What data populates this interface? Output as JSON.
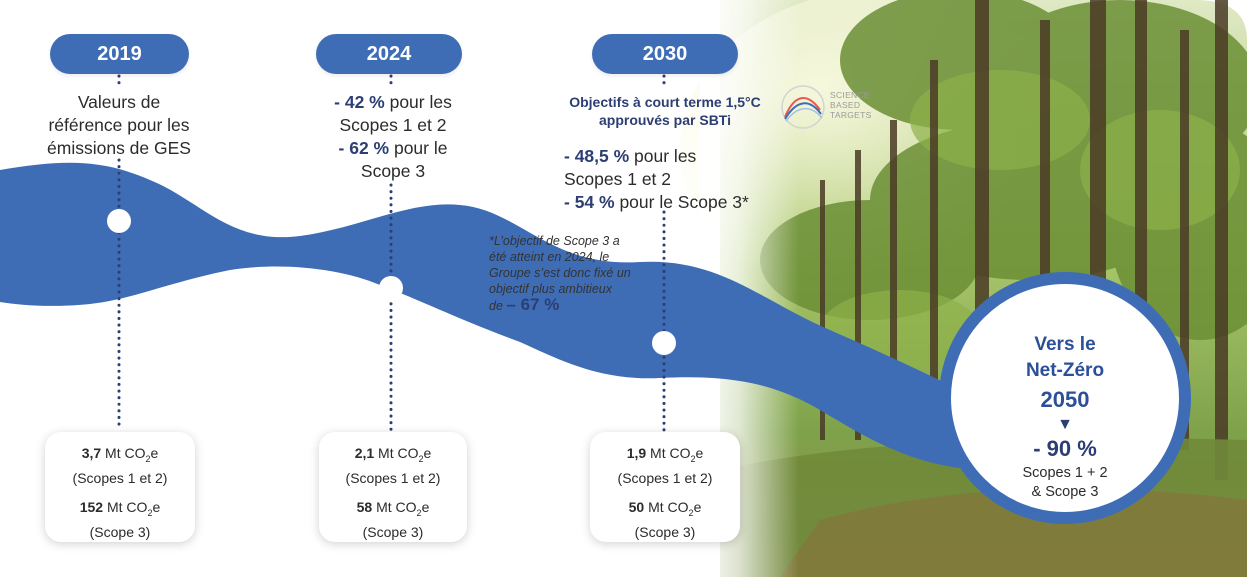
{
  "timeline": [
    {
      "year": "2019",
      "description": [
        "Valeurs de",
        "référence pour les",
        "émissions de GES"
      ],
      "card": {
        "scope12_value": "3,7",
        "scope12_unit": "Mt CO",
        "scope12_label": "(Scopes 1 et 2)",
        "scope3_value": "152",
        "scope3_unit": "Mt CO",
        "scope3_label": "(Scope 3)"
      }
    },
    {
      "year": "2024",
      "targets": [
        {
          "value": "- 42 %",
          "text": " pour les"
        },
        {
          "value": "",
          "text": "Scopes 1 et 2"
        },
        {
          "value": "- 62 %",
          "text": " pour le"
        },
        {
          "value": "",
          "text": "Scope 3"
        }
      ],
      "card": {
        "scope12_value": "2,1",
        "scope12_unit": "Mt CO",
        "scope12_label": "(Scopes 1 et 2)",
        "scope3_value": "58",
        "scope3_unit": "Mt CO",
        "scope3_label": "(Scope 3)"
      }
    },
    {
      "year": "2030",
      "heading": [
        "Objectifs à court terme 1,5°C",
        "approuvés par SBTi"
      ],
      "sbti_logo": [
        "SCIENCE",
        "BASED",
        "TARGETS"
      ],
      "targets": [
        {
          "value": "- 48,5 %",
          "text": " pour les"
        },
        {
          "value": "",
          "text": "Scopes 1 et 2"
        },
        {
          "value": "- 54 %",
          "text": " pour le Scope 3*"
        }
      ],
      "card": {
        "scope12_value": "1,9",
        "scope12_unit": "Mt CO",
        "scope12_label": "(Scopes 1 et 2)",
        "scope3_value": "50",
        "scope3_unit": "Mt CO",
        "scope3_label": "(Scope 3)"
      }
    }
  ],
  "footnote": {
    "lines": [
      "*L’objectif de Scope 3 a",
      "été atteint en 2024, le",
      "Groupe s’est donc fixé un",
      "objectif plus ambitieux"
    ],
    "last_prefix": "de",
    "last_value": "– 67 %"
  },
  "co2_subscript": "2",
  "co2_suffix": "e",
  "netzero": {
    "line1": "Vers le",
    "line2": "Net-Zéro",
    "year": "2050",
    "arrow": "▼",
    "value": "- 90 %",
    "scope_line1": "Scopes 1 + 2",
    "scope_line2": "& Scope 3"
  },
  "colors": {
    "primary_blue": "#3e6db6",
    "dark_navy": "#2c3e73",
    "forest_green": "#4f7f2c"
  }
}
